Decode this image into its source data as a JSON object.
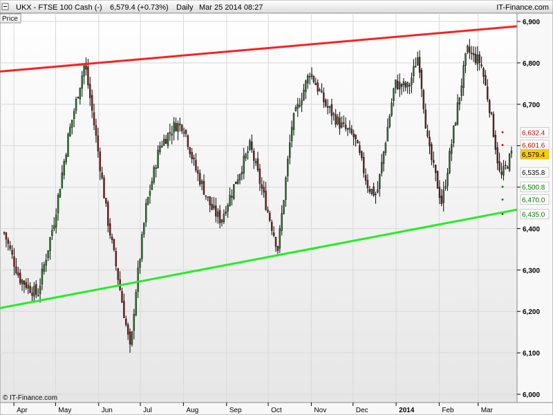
{
  "header": {
    "instrument": "UKX - FTSE 100 Cash (-)",
    "last_change": "6,579.4 (+0.73%)",
    "interval": "Daily",
    "datetime": "Mar 25 2014 08:27",
    "brand": "IT-Finance.com"
  },
  "panel_label": "Price",
  "copyright": "© IT-Finance.com",
  "colors": {
    "resistance": "#ff2020",
    "support": "#22ee22",
    "last_price_bg": "#ffcc00",
    "red_level": "#cc0000",
    "green_level": "#007700"
  },
  "chart_data": {
    "type": "candlestick",
    "ylim": [
      5980,
      6920
    ],
    "y_ticks": [
      "6,000",
      "6,100",
      "6,200",
      "6,300",
      "6,400",
      "6,500",
      "6,600",
      "6,700",
      "6,800",
      "6,900"
    ],
    "x_ticks": [
      "Apr",
      "May",
      "Jun",
      "Jul",
      "Aug",
      "Sep",
      "Oct",
      "Nov",
      "Dec",
      "2014",
      "Feb",
      "Mar"
    ],
    "trendlines": [
      {
        "name": "resistance",
        "from": [
          "2013-03-25",
          6780
        ],
        "to": [
          "2014-03-28",
          6888
        ]
      },
      {
        "name": "support",
        "from": [
          "2013-03-25",
          6210
        ],
        "to": [
          "2014-03-28",
          6445
        ]
      }
    ],
    "levels": [
      {
        "label": "6,632.4",
        "value": 6632.4,
        "kind": "resistance"
      },
      {
        "label": "6,601.6",
        "value": 6601.6,
        "kind": "resistance"
      },
      {
        "label": "6,579.4",
        "value": 6579.4,
        "kind": "last"
      },
      {
        "label": "6,535.8",
        "value": 6535.8,
        "kind": "pivot"
      },
      {
        "label": "6,500.8",
        "value": 6500.8,
        "kind": "support"
      },
      {
        "label": "6,470.0",
        "value": 6470.0,
        "kind": "support"
      },
      {
        "label": "6,435.0",
        "value": 6435.0,
        "kind": "support"
      }
    ],
    "close_path": [
      [
        "2013-03-25",
        6390
      ],
      [
        "2013-04-05",
        6280
      ],
      [
        "2013-04-18",
        6240
      ],
      [
        "2013-04-30",
        6420
      ],
      [
        "2013-05-10",
        6620
      ],
      [
        "2013-05-22",
        6800
      ],
      [
        "2013-05-31",
        6600
      ],
      [
        "2013-06-07",
        6430
      ],
      [
        "2013-06-14",
        6300
      ],
      [
        "2013-06-24",
        6100
      ],
      [
        "2013-06-27",
        6230
      ],
      [
        "2013-07-05",
        6450
      ],
      [
        "2013-07-15",
        6600
      ],
      [
        "2013-07-26",
        6650
      ],
      [
        "2013-08-01",
        6650
      ],
      [
        "2013-08-09",
        6550
      ],
      [
        "2013-08-21",
        6450
      ],
      [
        "2013-08-28",
        6420
      ],
      [
        "2013-09-06",
        6500
      ],
      [
        "2013-09-18",
        6600
      ],
      [
        "2013-09-30",
        6450
      ],
      [
        "2013-10-08",
        6350
      ],
      [
        "2013-10-18",
        6650
      ],
      [
        "2013-10-31",
        6780
      ],
      [
        "2013-11-11",
        6700
      ],
      [
        "2013-11-22",
        6650
      ],
      [
        "2013-12-02",
        6620
      ],
      [
        "2013-12-12",
        6500
      ],
      [
        "2013-12-18",
        6480
      ],
      [
        "2013-12-31",
        6750
      ],
      [
        "2014-01-10",
        6740
      ],
      [
        "2014-01-17",
        6820
      ],
      [
        "2014-01-24",
        6600
      ],
      [
        "2014-02-03",
        6460
      ],
      [
        "2014-02-12",
        6650
      ],
      [
        "2014-02-21",
        6830
      ],
      [
        "2014-03-03",
        6800
      ],
      [
        "2014-03-10",
        6680
      ],
      [
        "2014-03-17",
        6520
      ],
      [
        "2014-03-25",
        6579
      ]
    ]
  }
}
